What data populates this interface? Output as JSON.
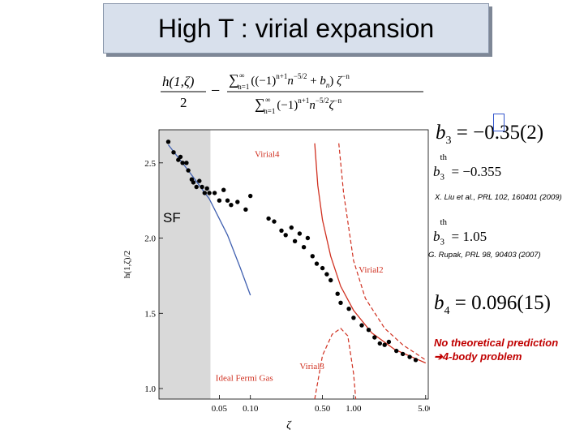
{
  "slide": {
    "title": "High T : virial expansion",
    "sf_label": "SF",
    "formula": {
      "lhs_num": "h(1,ζ)",
      "lhs_den": "2",
      "minus": "−",
      "rhs_num": "∑n=1∞ ((−1)n+1n−5/2 + bn) ζ−n",
      "rhs_den": "∑n=1∞ (−1)n+1n−5/2ζ−n"
    },
    "b3_exp": "b3 = −0.35(2)",
    "b3_th_liu": "b3th = −0.355",
    "ref_liu": "X. Liu et al., PRL 102, 160401 (2009)",
    "b3_th_rupak": "b3th = 1.05",
    "ref_rupak": "G. Rupak, PRL 98, 90403 (2007)",
    "b4_exp": "b4 = 0.096(15)",
    "note_line1": "No theoretical prediction",
    "note_line2": "4-body problem"
  },
  "colors": {
    "title_bg": "#d8e0ec",
    "note": "#c00000",
    "virial_curve": "#d03020",
    "ideal_line": "#4060b0",
    "points": "#000000",
    "shade": "#d9d9d9"
  },
  "chart_data": {
    "type": "scatter",
    "x_scale": "log",
    "xlabel": "ζ",
    "ylabel": "h(1,ζ)/2",
    "xlim": [
      0.013,
      5.3
    ],
    "ylim": [
      0.93,
      2.72
    ],
    "x_ticks": [
      {
        "value": 0.05,
        "label": "0.05"
      },
      {
        "value": 0.1,
        "label": "0.10"
      },
      {
        "value": 0.5,
        "label": "0.50"
      },
      {
        "value": 1.0,
        "label": "1.00"
      },
      {
        "value": 5.0,
        "label": "5.00"
      }
    ],
    "y_ticks": [
      {
        "value": 1.0,
        "label": "1.0"
      },
      {
        "value": 1.5,
        "label": "1.5"
      },
      {
        "value": 2.0,
        "label": "2.0"
      },
      {
        "value": 2.5,
        "label": "2.5"
      }
    ],
    "shaded_region": {
      "x_from": 0.013,
      "x_to": 0.041,
      "label": "SF"
    },
    "series": [
      {
        "name": "data",
        "points": [
          [
            0.016,
            2.64
          ],
          [
            0.018,
            2.57
          ],
          [
            0.02,
            2.52
          ],
          [
            0.022,
            2.5
          ],
          [
            0.021,
            2.54
          ],
          [
            0.024,
            2.5
          ],
          [
            0.025,
            2.45
          ],
          [
            0.027,
            2.39
          ],
          [
            0.028,
            2.37
          ],
          [
            0.03,
            2.34
          ],
          [
            0.032,
            2.38
          ],
          [
            0.034,
            2.34
          ],
          [
            0.036,
            2.3
          ],
          [
            0.038,
            2.33
          ],
          [
            0.04,
            2.3
          ],
          [
            0.045,
            2.3
          ],
          [
            0.05,
            2.25
          ],
          [
            0.055,
            2.32
          ],
          [
            0.06,
            2.25
          ],
          [
            0.065,
            2.22
          ],
          [
            0.075,
            2.24
          ],
          [
            0.09,
            2.19
          ],
          [
            0.1,
            2.28
          ],
          [
            0.15,
            2.13
          ],
          [
            0.17,
            2.11
          ],
          [
            0.2,
            2.05
          ],
          [
            0.22,
            2.02
          ],
          [
            0.25,
            2.07
          ],
          [
            0.27,
            1.98
          ],
          [
            0.3,
            2.03
          ],
          [
            0.33,
            1.94
          ],
          [
            0.36,
            2.0
          ],
          [
            0.4,
            1.88
          ],
          [
            0.44,
            1.83
          ],
          [
            0.5,
            1.8
          ],
          [
            0.55,
            1.76
          ],
          [
            0.6,
            1.72
          ],
          [
            0.7,
            1.63
          ],
          [
            0.75,
            1.57
          ],
          [
            0.9,
            1.53
          ],
          [
            1.0,
            1.47
          ],
          [
            1.2,
            1.42
          ],
          [
            1.4,
            1.39
          ],
          [
            1.6,
            1.34
          ],
          [
            1.8,
            1.3
          ],
          [
            2.0,
            1.29
          ],
          [
            2.2,
            1.31
          ],
          [
            2.6,
            1.25
          ],
          [
            3.0,
            1.23
          ],
          [
            3.5,
            1.21
          ],
          [
            4.0,
            1.19
          ]
        ]
      },
      {
        "name": "Ideal Fermi Gas",
        "points": [
          [
            0.016,
            2.62
          ],
          [
            0.025,
            2.45
          ],
          [
            0.04,
            2.26
          ],
          [
            0.06,
            2.02
          ],
          [
            0.08,
            1.8
          ],
          [
            0.1,
            1.62
          ]
        ]
      },
      {
        "name": "Virial4",
        "points": [
          [
            0.42,
            2.63
          ],
          [
            0.45,
            2.35
          ],
          [
            0.5,
            2.12
          ],
          [
            0.6,
            1.88
          ],
          [
            0.75,
            1.68
          ],
          [
            1.0,
            1.52
          ],
          [
            1.5,
            1.37
          ],
          [
            2.5,
            1.26
          ],
          [
            5.0,
            1.17
          ]
        ]
      },
      {
        "name": "Virial2",
        "points": [
          [
            0.72,
            2.63
          ],
          [
            0.8,
            2.3
          ],
          [
            1.0,
            1.85
          ],
          [
            1.3,
            1.6
          ],
          [
            2.0,
            1.4
          ],
          [
            3.0,
            1.29
          ],
          [
            5.0,
            1.19
          ]
        ]
      },
      {
        "name": "Virial3",
        "points": [
          [
            0.42,
            0.93
          ],
          [
            0.5,
            1.22
          ],
          [
            0.62,
            1.36
          ],
          [
            0.75,
            1.4
          ],
          [
            0.88,
            1.35
          ],
          [
            1.0,
            1.1
          ],
          [
            1.05,
            0.93
          ]
        ]
      }
    ],
    "curve_labels": [
      {
        "text": "Virial4",
        "x": 0.11,
        "y": 2.54
      },
      {
        "text": "Virial2",
        "x": 1.12,
        "y": 1.77
      },
      {
        "text": "Virial3",
        "x": 0.3,
        "y": 1.13
      },
      {
        "text": "Ideal Fermi Gas",
        "x": 0.046,
        "y": 1.05
      }
    ]
  }
}
